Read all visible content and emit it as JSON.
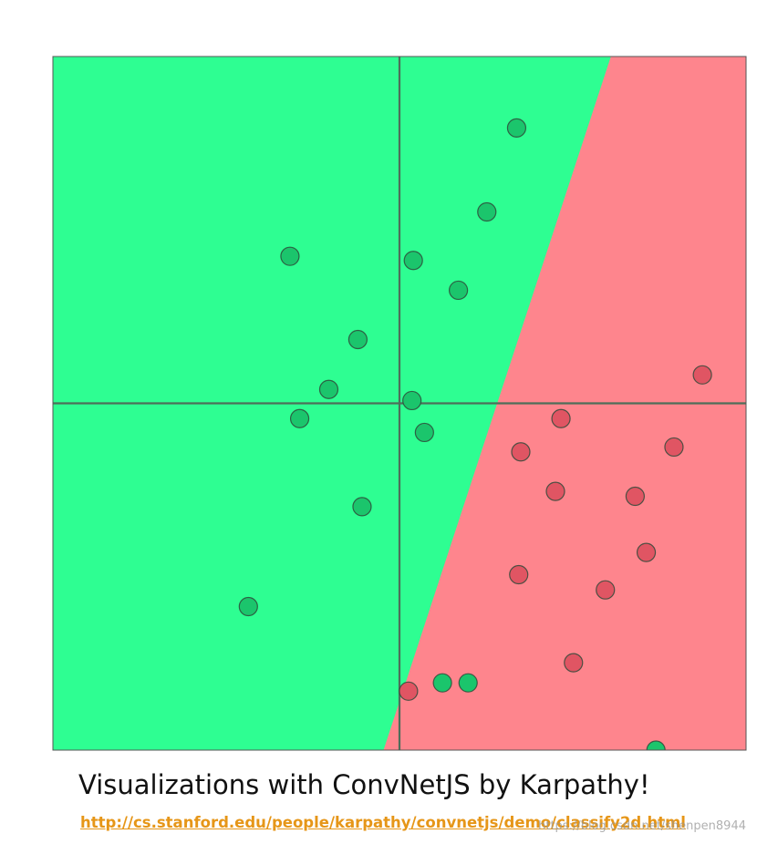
{
  "chart_data": {
    "type": "scatter",
    "title": "",
    "xlabel": "",
    "ylabel": "",
    "xlim": [
      -5,
      5
    ],
    "ylim": [
      -5,
      5
    ],
    "axes_lines_at_origin": true,
    "grid": false,
    "legend": "none",
    "decision_regions": {
      "type": "linear-boundary",
      "green_side": "left",
      "red_side": "right",
      "boundary_points": [
        [
          3.05,
          5.0
        ],
        [
          -0.23,
          -5.0
        ]
      ]
    },
    "colors": {
      "green_region": "#2efe92",
      "red_region": "#fe858d",
      "green_point": "#1bc56c",
      "red_point": "#e05563",
      "axis_line": "#4e6e5a"
    },
    "series": [
      {
        "class": "green",
        "points": [
          [
            1.69,
            3.97
          ],
          [
            1.26,
            2.76
          ],
          [
            -1.58,
            2.12
          ],
          [
            0.2,
            2.06
          ],
          [
            0.85,
            1.63
          ],
          [
            -0.6,
            0.92
          ],
          [
            -1.02,
            0.2
          ],
          [
            0.18,
            0.04
          ],
          [
            -1.44,
            -0.22
          ],
          [
            0.36,
            -0.42
          ],
          [
            -0.54,
            -1.49
          ],
          [
            -2.18,
            -2.93
          ],
          [
            0.62,
            -4.03
          ],
          [
            0.99,
            -4.03
          ],
          [
            3.7,
            -5.0
          ]
        ]
      },
      {
        "class": "red",
        "points": [
          [
            4.37,
            0.41
          ],
          [
            2.33,
            -0.22
          ],
          [
            1.75,
            -0.7
          ],
          [
            3.96,
            -0.63
          ],
          [
            2.25,
            -1.27
          ],
          [
            3.4,
            -1.34
          ],
          [
            3.56,
            -2.15
          ],
          [
            1.72,
            -2.47
          ],
          [
            2.97,
            -2.69
          ],
          [
            2.51,
            -3.74
          ],
          [
            0.13,
            -4.15
          ]
        ]
      }
    ]
  },
  "caption": "Visualizations with ConvNetJS by Karpathy!",
  "url": "http://cs.stanford.edu/people/karpathy/convnetjs/demo/classify2d.html",
  "watermark": "https://blog.csdn.net/shenpen8944"
}
